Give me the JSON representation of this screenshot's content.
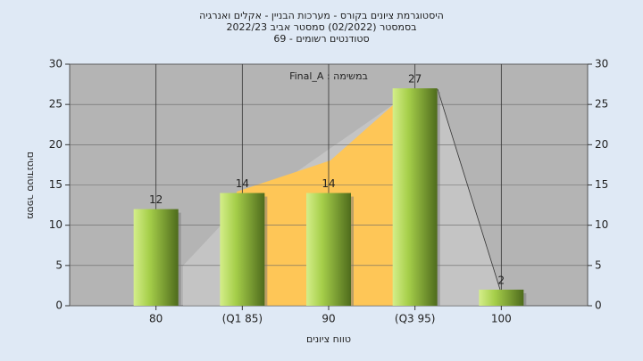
{
  "chart_data": {
    "type": "bar",
    "title": "היסטוגרמת ציונים בקורס - מערכות הבניין - אקלים ואנרגיה",
    "subtitle": "בסמסטר  (02/2022)  סמסטר אביב 2022/23",
    "subtitle2": "סטודנטים רשומים - 69",
    "annotation": "Final_A : במשימה",
    "x_label": "טווח ציונים",
    "y_label": "מספר סטודנטים",
    "categories": [
      "80",
      "(Q1 85)",
      "90",
      "(Q3 95)",
      "100"
    ],
    "values": [
      12,
      14,
      14,
      27,
      2
    ],
    "ylim": [
      0,
      30
    ],
    "yticks": [
      0,
      5,
      10,
      15,
      20,
      25,
      30
    ],
    "y2lim": [
      0,
      30
    ],
    "y2ticks": [
      0,
      5,
      10,
      15,
      20,
      25,
      30
    ],
    "grid": true
  }
}
